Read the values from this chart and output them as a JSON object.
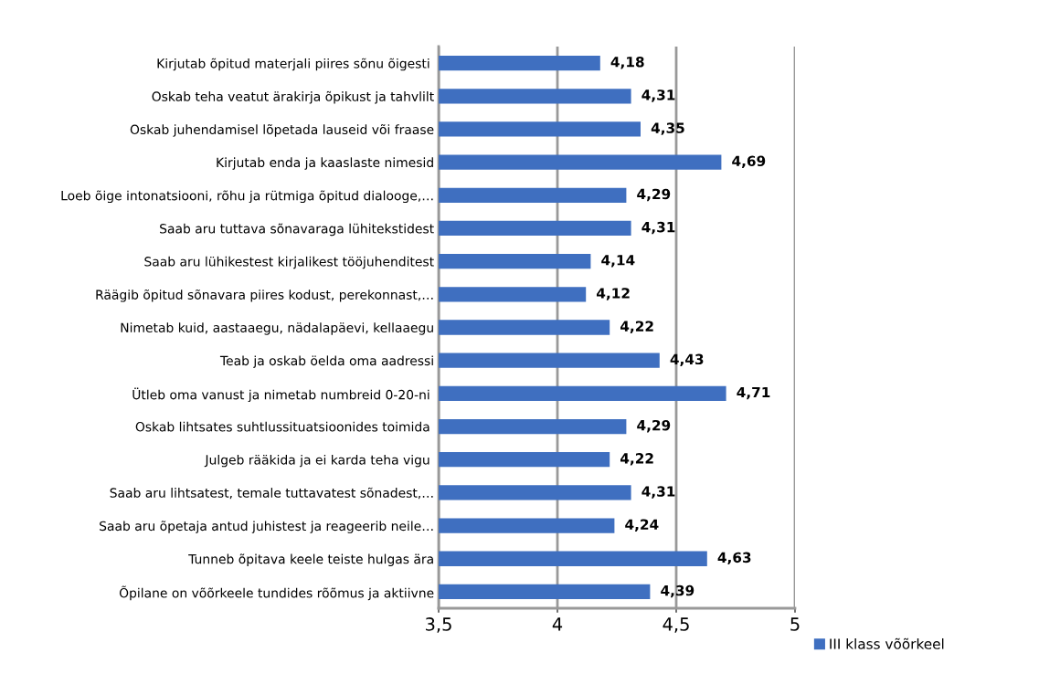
{
  "chart_data": {
    "type": "bar",
    "orientation": "horizontal",
    "categories": [
      "Kirjutab õpitud materjali piires sõnu õigesti ",
      "Oskab teha veatut ärakirja õpikust ja tahvlilt",
      "Oskab juhendamisel lõpetada lauseid või fraase",
      "Kirjutab enda ja kaaslaste nimesid",
      "Loeb õige intonatsiooni, rõhu ja rütmiga õpitud dialooge,…",
      "Saab aru tuttava sõnavaraga lühitekstidest",
      "Saab aru lühikestest kirjalikest tööjuhenditest",
      "Räägib õpitud sõnavara piires kodust, perekonnast,…",
      "Nimetab kuid, aastaaegu, nädalapäevi, kellaaegu",
      "Teab ja oskab öelda oma aadressi",
      "Ütleb oma vanust ja nimetab numbreid 0-20-ni ",
      "Oskab lihtsates suhtlussituatsioonides toimida ",
      "Julgeb rääkida ja ei karda teha vigu ",
      "Saab aru lihtsatest, temale tuttavatest sõnadest,…",
      "Saab aru õpetaja antud juhistest ja reageerib neile…",
      "Tunneb õpitava keele teiste hulgas ära",
      "Õpilane on võõrkeele tundides rõõmus ja aktiivne"
    ],
    "series": [
      {
        "name": "III klass võõrkeel",
        "color": "#3f6fc0",
        "values": [
          4.18,
          4.31,
          4.35,
          4.69,
          4.29,
          4.31,
          4.14,
          4.12,
          4.22,
          4.43,
          4.71,
          4.29,
          4.22,
          4.31,
          4.24,
          4.63,
          4.39
        ],
        "value_labels": [
          "4,18",
          "4,31",
          "4,35",
          "4,69",
          "4,29",
          "4,31",
          "4,14",
          "4,12",
          "4,22",
          "4,43",
          "4,71",
          "4,29",
          "4,22",
          "4,31",
          "4,24",
          "4,63",
          "4,39"
        ]
      }
    ],
    "xlim": [
      3.5,
      5
    ],
    "xticks": [
      {
        "value": 3.5,
        "label": "3,5"
      },
      4,
      {
        "value": 4.5,
        "label": "4,5"
      },
      5
    ],
    "grid": "x",
    "legend": "right"
  }
}
